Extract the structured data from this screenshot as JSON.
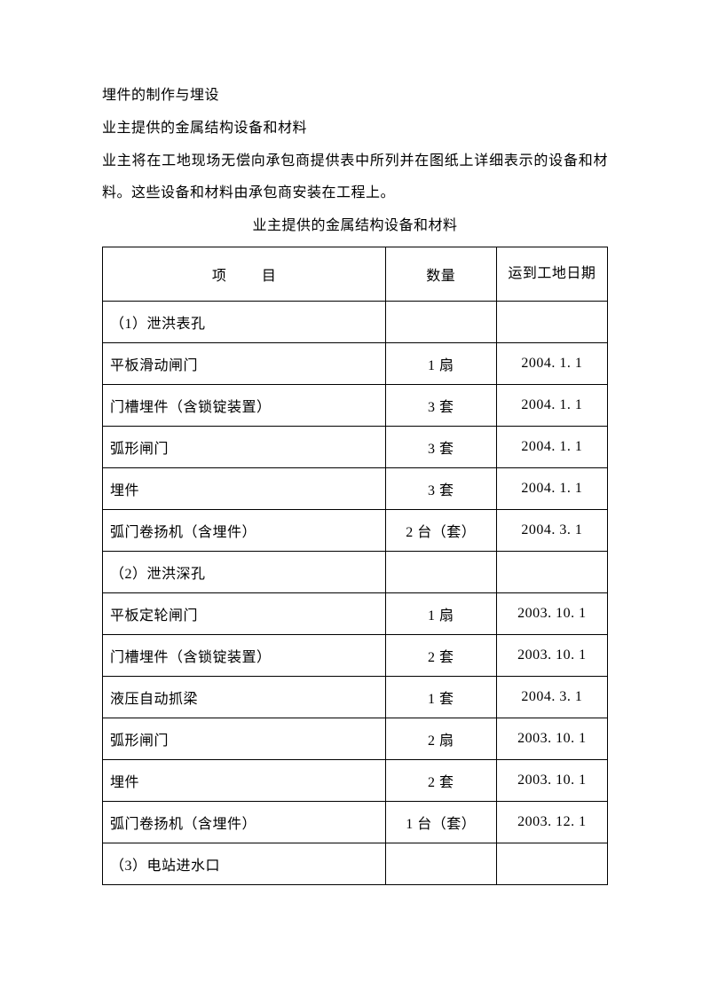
{
  "para1": "埋件的制作与埋设",
  "para2": "业主提供的金属结构设备和材料",
  "para3": "业主将在工地现场无偿向承包商提供表中所列并在图纸上详细表示的设备和材料。这些设备和材料由承包商安装在工程上。",
  "table_title": "业主提供的金属结构设备和材料",
  "table": {
    "columns": [
      "项目",
      "数量",
      "运到工地日期"
    ],
    "rows": [
      {
        "item": "（1）泄洪表孔",
        "qty": "",
        "date": ""
      },
      {
        "item": "平板滑动闸门",
        "qty": "1 扇",
        "date": "2004. 1. 1"
      },
      {
        "item": "门槽埋件（含锁锭装置）",
        "qty": "3 套",
        "date": "2004. 1. 1"
      },
      {
        "item": "弧形闸门",
        "qty": "3 套",
        "date": "2004. 1. 1"
      },
      {
        "item": "埋件",
        "qty": "3 套",
        "date": "2004. 1. 1"
      },
      {
        "item": "弧门卷扬机（含埋件）",
        "qty": "2 台（套）",
        "date": "2004. 3. 1"
      },
      {
        "item": "（2）泄洪深孔",
        "qty": "",
        "date": ""
      },
      {
        "item": "平板定轮闸门",
        "qty": "1 扇",
        "date": "2003. 10. 1"
      },
      {
        "item": "门槽埋件（含锁锭装置）",
        "qty": "2 套",
        "date": "2003. 10. 1"
      },
      {
        "item": "液压自动抓梁",
        "qty": "1 套",
        "date": "2004. 3. 1"
      },
      {
        "item": "弧形闸门",
        "qty": "2 扇",
        "date": "2003. 10. 1"
      },
      {
        "item": "埋件",
        "qty": "2 套",
        "date": "2003. 10. 1"
      },
      {
        "item": "弧门卷扬机（含埋件）",
        "qty": "1 台（套）",
        "date": "2003. 12. 1"
      },
      {
        "item": "（3）电站进水口",
        "qty": "",
        "date": ""
      }
    ]
  }
}
